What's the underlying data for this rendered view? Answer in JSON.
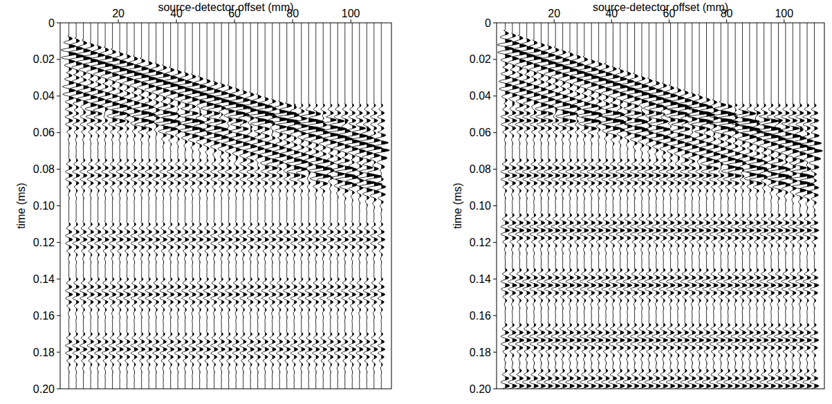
{
  "chart_data": [
    {
      "type": "wiggle",
      "x_label": "source-detector offset (mm)",
      "y_label": "time (ms)",
      "xlim": [
        0,
        114
      ],
      "xticks": [
        20,
        40,
        60,
        80,
        100
      ],
      "ylim": [
        0,
        0.2
      ],
      "yticks": [
        0,
        0.02,
        0.04,
        0.06,
        0.08,
        {
          "value": 0.1,
          "label": "0.10"
        },
        0.12,
        0.14,
        0.16,
        0.18,
        {
          "value": 0.2,
          "label": "0.20"
        }
      ],
      "x": [
        3,
        5.5,
        8,
        10.5,
        13,
        15.5,
        18,
        20.5,
        23,
        25.5,
        28,
        30.5,
        33,
        35.5,
        38,
        40.5,
        43,
        45.5,
        48,
        50.5,
        53,
        55.5,
        58,
        60.5,
        63,
        65.5,
        68,
        70.5,
        73,
        75.5,
        78,
        80.5,
        83,
        85.5,
        88,
        90.5,
        93,
        95.5,
        98,
        100.5,
        103,
        105.5,
        108,
        110.5
      ],
      "series": [
        {
          "amplitude": 1.0,
          "values": [
            0.0085,
            0.0097,
            0.0109,
            0.0122,
            0.0134,
            0.0146,
            0.0158,
            0.0171,
            0.0183,
            0.0195,
            0.0207,
            0.022,
            0.0232,
            0.0244,
            0.0256,
            0.0269,
            0.0281,
            0.0293,
            0.0305,
            0.0318,
            0.033,
            0.0342,
            0.0354,
            0.0367,
            0.0379,
            0.0391,
            0.0403,
            0.0416,
            0.0428,
            0.044,
            0.0452,
            0.0465,
            0.0477,
            0.0489,
            0.0501,
            0.0514,
            0.0526,
            0.0538,
            0.055,
            0.0563,
            0.0575,
            0.0587,
            0.0599,
            0.0612
          ]
        },
        {
          "amplitude": 0.8,
          "values": [
            0.0285,
            0.0297,
            0.0309,
            0.0322,
            0.0334,
            0.0346,
            0.0358,
            0.0371,
            0.0383,
            0.0395,
            0.0407,
            0.042,
            0.0432,
            0.0444,
            0.0456,
            0.0469,
            0.0481,
            0.0493,
            0.0505,
            0.0518,
            0.053,
            0.0542,
            0.0554,
            0.0567,
            0.0579,
            0.0591,
            0.0603,
            0.0616,
            0.0628,
            0.064,
            0.0652,
            0.0665,
            0.0677,
            0.0689,
            0.0701,
            0.0714,
            0.0726,
            0.0738,
            0.075,
            0.0763,
            0.0775,
            0.0787,
            0.0799,
            0.0812
          ]
        },
        {
          "amplitude": 0.45,
          "values": [
            0.045,
            0.045,
            0.045,
            0.045,
            0.045,
            0.045,
            0.045,
            0.045,
            0.045,
            0.045,
            0.045,
            0.045,
            0.045,
            0.045,
            0.045,
            0.045,
            0.045,
            0.045,
            0.045,
            0.045,
            0.045,
            0.045,
            0.045,
            0.045,
            0.045,
            0.045,
            0.045,
            0.045,
            0.045,
            0.045,
            0.045,
            0.045,
            0.045,
            0.045,
            0.045,
            0.045,
            0.045,
            0.045,
            0.045,
            0.045,
            0.045,
            0.045,
            0.045,
            0.045
          ]
        },
        {
          "amplitude": 0.45,
          "values": [
            0.075,
            0.075,
            0.075,
            0.075,
            0.075,
            0.075,
            0.075,
            0.075,
            0.075,
            0.075,
            0.075,
            0.075,
            0.075,
            0.075,
            0.075,
            0.075,
            0.075,
            0.075,
            0.075,
            0.075,
            0.075,
            0.075,
            0.075,
            0.075,
            0.075,
            0.075,
            0.075,
            0.075,
            0.075,
            0.075,
            0.075,
            0.075,
            0.075,
            0.075,
            0.075,
            0.075,
            0.075,
            0.075,
            0.075,
            0.075,
            0.075,
            0.075,
            0.075,
            0.075
          ]
        },
        {
          "amplitude": 0.45,
          "values": [
            0.11,
            0.11,
            0.11,
            0.11,
            0.11,
            0.11,
            0.11,
            0.11,
            0.11,
            0.11,
            0.11,
            0.11,
            0.11,
            0.11,
            0.11,
            0.11,
            0.11,
            0.11,
            0.11,
            0.11,
            0.11,
            0.11,
            0.11,
            0.11,
            0.11,
            0.11,
            0.11,
            0.11,
            0.11,
            0.11,
            0.11,
            0.11,
            0.11,
            0.11,
            0.11,
            0.11,
            0.11,
            0.11,
            0.11,
            0.11,
            0.11,
            0.11,
            0.11,
            0.11
          ]
        },
        {
          "amplitude": 0.45,
          "values": [
            0.14,
            0.14,
            0.14,
            0.14,
            0.14,
            0.14,
            0.14,
            0.14,
            0.14,
            0.14,
            0.14,
            0.14,
            0.14,
            0.14,
            0.14,
            0.14,
            0.14,
            0.14,
            0.14,
            0.14,
            0.14,
            0.14,
            0.14,
            0.14,
            0.14,
            0.14,
            0.14,
            0.14,
            0.14,
            0.14,
            0.14,
            0.14,
            0.14,
            0.14,
            0.14,
            0.14,
            0.14,
            0.14,
            0.14,
            0.14,
            0.14,
            0.14,
            0.14,
            0.14
          ]
        },
        {
          "amplitude": 0.45,
          "values": [
            0.17,
            0.17,
            0.17,
            0.17,
            0.17,
            0.17,
            0.17,
            0.17,
            0.17,
            0.17,
            0.17,
            0.17,
            0.17,
            0.17,
            0.17,
            0.17,
            0.17,
            0.17,
            0.17,
            0.17,
            0.17,
            0.17,
            0.17,
            0.17,
            0.17,
            0.17,
            0.17,
            0.17,
            0.17,
            0.17,
            0.17,
            0.17,
            0.17,
            0.17,
            0.17,
            0.17,
            0.17,
            0.17,
            0.17,
            0.17,
            0.17,
            0.17,
            0.17,
            0.17
          ]
        }
      ]
    },
    {
      "type": "wiggle",
      "x_label": "source-detector offset (mm)",
      "y_label": "time (ms)",
      "xlim": [
        0,
        114
      ],
      "xticks": [
        20,
        40,
        60,
        80,
        100
      ],
      "ylim": [
        0,
        0.2
      ],
      "yticks": [
        0,
        0.02,
        0.04,
        0.06,
        0.08,
        {
          "value": 0.1,
          "label": "0.10"
        },
        0.12,
        0.14,
        0.16,
        0.18,
        {
          "value": 0.2,
          "label": "0.20"
        }
      ],
      "x": [
        3,
        5.5,
        8,
        10.5,
        13,
        15.5,
        18,
        20.5,
        23,
        25.5,
        28,
        30.5,
        33,
        35.5,
        38,
        40.5,
        43,
        45.5,
        48,
        50.5,
        53,
        55.5,
        58,
        60.5,
        63,
        65.5,
        68,
        70.5,
        73,
        75.5,
        78,
        80.5,
        83,
        85.5,
        88,
        90.5,
        93,
        95.5,
        98,
        100.5,
        103,
        105.5,
        108,
        110.5
      ],
      "series": [
        {
          "amplitude": 1.0,
          "values": [
            0.0056,
            0.0069,
            0.0082,
            0.0095,
            0.0108,
            0.0121,
            0.0134,
            0.0147,
            0.016,
            0.0173,
            0.0186,
            0.0199,
            0.0212,
            0.0225,
            0.0238,
            0.0251,
            0.0264,
            0.0277,
            0.029,
            0.0303,
            0.0316,
            0.0329,
            0.0342,
            0.0355,
            0.0368,
            0.0381,
            0.0394,
            0.0407,
            0.042,
            0.0433,
            0.0446,
            0.0459,
            0.0472,
            0.0485,
            0.0498,
            0.0511,
            0.0524,
            0.0537,
            0.055,
            0.0563,
            0.0576,
            0.0589,
            0.0602,
            0.0615
          ]
        },
        {
          "amplitude": 0.8,
          "values": [
            0.0256,
            0.0269,
            0.0282,
            0.0295,
            0.0308,
            0.0321,
            0.0334,
            0.0347,
            0.036,
            0.0373,
            0.0386,
            0.0399,
            0.0412,
            0.0425,
            0.0438,
            0.0451,
            0.0464,
            0.0477,
            0.049,
            0.0503,
            0.0516,
            0.0529,
            0.0542,
            0.0555,
            0.0568,
            0.0581,
            0.0594,
            0.0607,
            0.062,
            0.0633,
            0.0646,
            0.0659,
            0.0672,
            0.0685,
            0.0698,
            0.0711,
            0.0724,
            0.0737,
            0.075,
            0.0763,
            0.0776,
            0.0789,
            0.0802,
            0.0815
          ]
        },
        {
          "amplitude": 0.55,
          "values": [
            0.045,
            0.045,
            0.045,
            0.045,
            0.045,
            0.045,
            0.045,
            0.045,
            0.045,
            0.045,
            0.045,
            0.045,
            0.045,
            0.045,
            0.045,
            0.045,
            0.045,
            0.045,
            0.045,
            0.045,
            0.045,
            0.045,
            0.045,
            0.045,
            0.045,
            0.045,
            0.045,
            0.045,
            0.045,
            0.045,
            0.045,
            0.045,
            0.045,
            0.045,
            0.045,
            0.045,
            0.045,
            0.045,
            0.045,
            0.045,
            0.045,
            0.045,
            0.045,
            0.045
          ]
        },
        {
          "amplitude": 0.55,
          "values": [
            0.075,
            0.075,
            0.075,
            0.075,
            0.075,
            0.075,
            0.075,
            0.075,
            0.075,
            0.075,
            0.075,
            0.075,
            0.075,
            0.075,
            0.075,
            0.075,
            0.075,
            0.075,
            0.075,
            0.075,
            0.075,
            0.075,
            0.075,
            0.075,
            0.075,
            0.075,
            0.075,
            0.075,
            0.075,
            0.075,
            0.075,
            0.075,
            0.075,
            0.075,
            0.075,
            0.075,
            0.075,
            0.075,
            0.075,
            0.075,
            0.075,
            0.075,
            0.075,
            0.075
          ]
        },
        {
          "amplitude": 0.55,
          "values": [
            0.105,
            0.105,
            0.105,
            0.105,
            0.105,
            0.105,
            0.105,
            0.105,
            0.105,
            0.105,
            0.105,
            0.105,
            0.105,
            0.105,
            0.105,
            0.105,
            0.105,
            0.105,
            0.105,
            0.105,
            0.105,
            0.105,
            0.105,
            0.105,
            0.105,
            0.105,
            0.105,
            0.105,
            0.105,
            0.105,
            0.105,
            0.105,
            0.105,
            0.105,
            0.105,
            0.105,
            0.105,
            0.105,
            0.105,
            0.105,
            0.105,
            0.105,
            0.105,
            0.105
          ]
        },
        {
          "amplitude": 0.55,
          "values": [
            0.135,
            0.135,
            0.135,
            0.135,
            0.135,
            0.135,
            0.135,
            0.135,
            0.135,
            0.135,
            0.135,
            0.135,
            0.135,
            0.135,
            0.135,
            0.135,
            0.135,
            0.135,
            0.135,
            0.135,
            0.135,
            0.135,
            0.135,
            0.135,
            0.135,
            0.135,
            0.135,
            0.135,
            0.135,
            0.135,
            0.135,
            0.135,
            0.135,
            0.135,
            0.135,
            0.135,
            0.135,
            0.135,
            0.135,
            0.135,
            0.135,
            0.135,
            0.135,
            0.135
          ]
        },
        {
          "amplitude": 0.55,
          "values": [
            0.165,
            0.165,
            0.165,
            0.165,
            0.165,
            0.165,
            0.165,
            0.165,
            0.165,
            0.165,
            0.165,
            0.165,
            0.165,
            0.165,
            0.165,
            0.165,
            0.165,
            0.165,
            0.165,
            0.165,
            0.165,
            0.165,
            0.165,
            0.165,
            0.165,
            0.165,
            0.165,
            0.165,
            0.165,
            0.165,
            0.165,
            0.165,
            0.165,
            0.165,
            0.165,
            0.165,
            0.165,
            0.165,
            0.165,
            0.165,
            0.165,
            0.165,
            0.165,
            0.165
          ]
        },
        {
          "amplitude": 0.55,
          "values": [
            0.19,
            0.19,
            0.19,
            0.19,
            0.19,
            0.19,
            0.19,
            0.19,
            0.19,
            0.19,
            0.19,
            0.19,
            0.19,
            0.19,
            0.19,
            0.19,
            0.19,
            0.19,
            0.19,
            0.19,
            0.19,
            0.19,
            0.19,
            0.19,
            0.19,
            0.19,
            0.19,
            0.19,
            0.19,
            0.19,
            0.19,
            0.19,
            0.19,
            0.19,
            0.19,
            0.19,
            0.19,
            0.19,
            0.19,
            0.19,
            0.19,
            0.19,
            0.19,
            0.19
          ]
        }
      ]
    }
  ]
}
